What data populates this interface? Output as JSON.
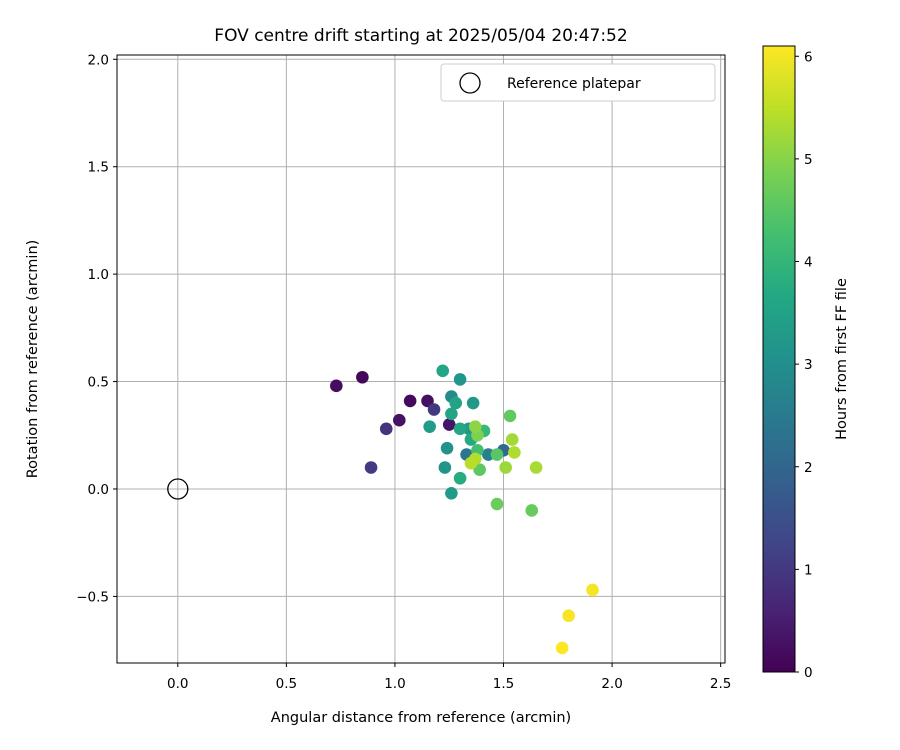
{
  "chart_data": {
    "type": "scatter",
    "title": "FOV centre drift starting at 2025/05/04 20:47:52",
    "xlabel": "Angular distance from reference (arcmin)",
    "ylabel": "Rotation from reference (arcmin)",
    "xlim": [
      -0.28,
      2.52
    ],
    "ylim": [
      -0.81,
      2.02
    ],
    "xticks": [
      "0.0",
      "0.5",
      "1.0",
      "1.5",
      "2.0",
      "2.5"
    ],
    "xtick_values": [
      0.0,
      0.5,
      1.0,
      1.5,
      2.0,
      2.5
    ],
    "yticks": [
      "−0.5",
      "0.0",
      "0.5",
      "1.0",
      "1.5",
      "2.0"
    ],
    "ytick_values": [
      -0.5,
      0.0,
      0.5,
      1.0,
      1.5,
      2.0
    ],
    "grid": true,
    "legend": {
      "position": "top-right",
      "label": "Reference platepar"
    },
    "reference_point": {
      "x": 0.0,
      "y": 0.0
    },
    "colorbar": {
      "label": "Hours from first FF file",
      "ticks": [
        "0",
        "1",
        "2",
        "3",
        "4",
        "5",
        "6"
      ],
      "tick_values": [
        0,
        1,
        2,
        3,
        4,
        5,
        6
      ],
      "range": [
        0,
        6.1
      ],
      "colormap": "viridis"
    },
    "points": [
      {
        "x": 0.73,
        "y": 0.48,
        "h": 0.2
      },
      {
        "x": 0.85,
        "y": 0.52,
        "h": 0.1
      },
      {
        "x": 1.07,
        "y": 0.41,
        "h": 0.15
      },
      {
        "x": 1.15,
        "y": 0.41,
        "h": 0.25
      },
      {
        "x": 1.02,
        "y": 0.32,
        "h": 0.3
      },
      {
        "x": 1.25,
        "y": 0.3,
        "h": 0.35
      },
      {
        "x": 0.96,
        "y": 0.28,
        "h": 0.9
      },
      {
        "x": 1.18,
        "y": 0.37,
        "h": 1.0
      },
      {
        "x": 0.89,
        "y": 0.1,
        "h": 1.05
      },
      {
        "x": 1.5,
        "y": 0.18,
        "h": 2.05
      },
      {
        "x": 1.33,
        "y": 0.16,
        "h": 2.4
      },
      {
        "x": 1.43,
        "y": 0.16,
        "h": 2.6
      },
      {
        "x": 1.26,
        "y": 0.43,
        "h": 2.9
      },
      {
        "x": 1.24,
        "y": 0.19,
        "h": 3.1
      },
      {
        "x": 1.23,
        "y": 0.1,
        "h": 3.15
      },
      {
        "x": 1.3,
        "y": 0.51,
        "h": 3.2
      },
      {
        "x": 1.36,
        "y": 0.4,
        "h": 3.25
      },
      {
        "x": 1.34,
        "y": 0.28,
        "h": 3.3
      },
      {
        "x": 1.16,
        "y": 0.29,
        "h": 3.35
      },
      {
        "x": 1.26,
        "y": -0.02,
        "h": 3.3
      },
      {
        "x": 1.28,
        "y": 0.4,
        "h": 3.5
      },
      {
        "x": 1.26,
        "y": 0.35,
        "h": 3.55
      },
      {
        "x": 1.22,
        "y": 0.55,
        "h": 3.6
      },
      {
        "x": 1.3,
        "y": 0.28,
        "h": 3.65
      },
      {
        "x": 1.35,
        "y": 0.23,
        "h": 3.7
      },
      {
        "x": 1.3,
        "y": 0.05,
        "h": 3.75
      },
      {
        "x": 1.41,
        "y": 0.27,
        "h": 4.05
      },
      {
        "x": 1.38,
        "y": 0.18,
        "h": 4.25
      },
      {
        "x": 1.47,
        "y": 0.16,
        "h": 4.5
      },
      {
        "x": 1.39,
        "y": 0.09,
        "h": 4.55
      },
      {
        "x": 1.53,
        "y": 0.34,
        "h": 4.6
      },
      {
        "x": 1.63,
        "y": -0.1,
        "h": 4.65
      },
      {
        "x": 1.47,
        "y": -0.07,
        "h": 4.7
      },
      {
        "x": 1.38,
        "y": 0.25,
        "h": 4.9
      },
      {
        "x": 1.37,
        "y": 0.29,
        "h": 5.05
      },
      {
        "x": 1.51,
        "y": 0.1,
        "h": 5.2
      },
      {
        "x": 1.54,
        "y": 0.23,
        "h": 5.25
      },
      {
        "x": 1.65,
        "y": 0.1,
        "h": 5.3
      },
      {
        "x": 1.37,
        "y": 0.14,
        "h": 5.4
      },
      {
        "x": 1.35,
        "y": 0.12,
        "h": 5.45
      },
      {
        "x": 1.55,
        "y": 0.17,
        "h": 5.35
      },
      {
        "x": 1.91,
        "y": -0.47,
        "h": 6.0
      },
      {
        "x": 1.8,
        "y": -0.59,
        "h": 6.05
      },
      {
        "x": 1.77,
        "y": -0.74,
        "h": 6.1
      }
    ]
  }
}
